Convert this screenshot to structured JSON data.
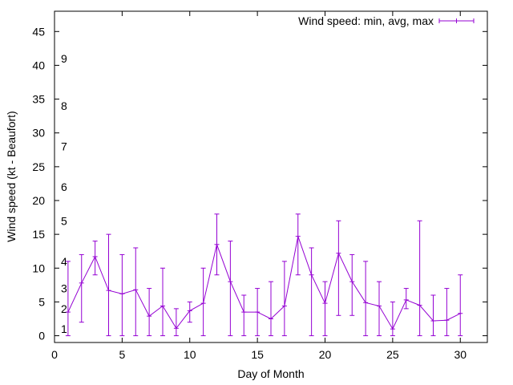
{
  "chart_data": {
    "type": "line",
    "xlabel": "Day of Month",
    "ylabel": "Wind speed (kt - Beaufort)",
    "xlim": [
      0,
      32
    ],
    "ylim": [
      -1,
      48
    ],
    "xticks": [
      0,
      5,
      10,
      15,
      20,
      25,
      30
    ],
    "yticks": [
      0,
      5,
      10,
      15,
      20,
      25,
      30,
      35,
      40,
      45
    ],
    "grid": false,
    "legend_position": "top-right",
    "beaufort_labels": [
      {
        "label": "1",
        "value": 1
      },
      {
        "label": "2",
        "value": 4
      },
      {
        "label": "3",
        "value": 7
      },
      {
        "label": "4",
        "value": 11
      },
      {
        "label": "5",
        "value": 17
      },
      {
        "label": "6",
        "value": 22
      },
      {
        "label": "7",
        "value": 28
      },
      {
        "label": "8",
        "value": 34
      },
      {
        "label": "9",
        "value": 41
      }
    ],
    "series": [
      {
        "name": "Wind speed: min, avg, max",
        "color": "#9400d3",
        "x": [
          1,
          2,
          3,
          4,
          5,
          6,
          7,
          8,
          9,
          10,
          11,
          12,
          13,
          14,
          15,
          16,
          17,
          18,
          19,
          20,
          21,
          22,
          23,
          24,
          25,
          26,
          27,
          28,
          29,
          30
        ],
        "avg": [
          3.5,
          7.8,
          11.7,
          6.7,
          6.2,
          6.8,
          2.9,
          4.4,
          1.1,
          3.7,
          4.8,
          13.5,
          8.0,
          3.5,
          3.5,
          2.5,
          4.4,
          14.7,
          9.0,
          4.8,
          12.2,
          8.0,
          4.9,
          4.4,
          1.0,
          5.3,
          4.5,
          2.2,
          2.3,
          3.3
        ],
        "min": [
          0,
          2,
          9,
          0,
          0,
          0,
          0,
          0,
          0,
          2,
          0,
          9,
          0,
          0,
          0,
          0,
          0,
          9,
          0,
          0,
          3,
          3,
          0,
          0,
          0,
          4,
          0,
          0,
          0,
          0
        ],
        "max": [
          11,
          12,
          14,
          15,
          12,
          13,
          7,
          10,
          4,
          5,
          10,
          18,
          14,
          6,
          7,
          8,
          11,
          18,
          13,
          8,
          17,
          12,
          11,
          8,
          5,
          7,
          17,
          6,
          7,
          9
        ]
      }
    ]
  }
}
